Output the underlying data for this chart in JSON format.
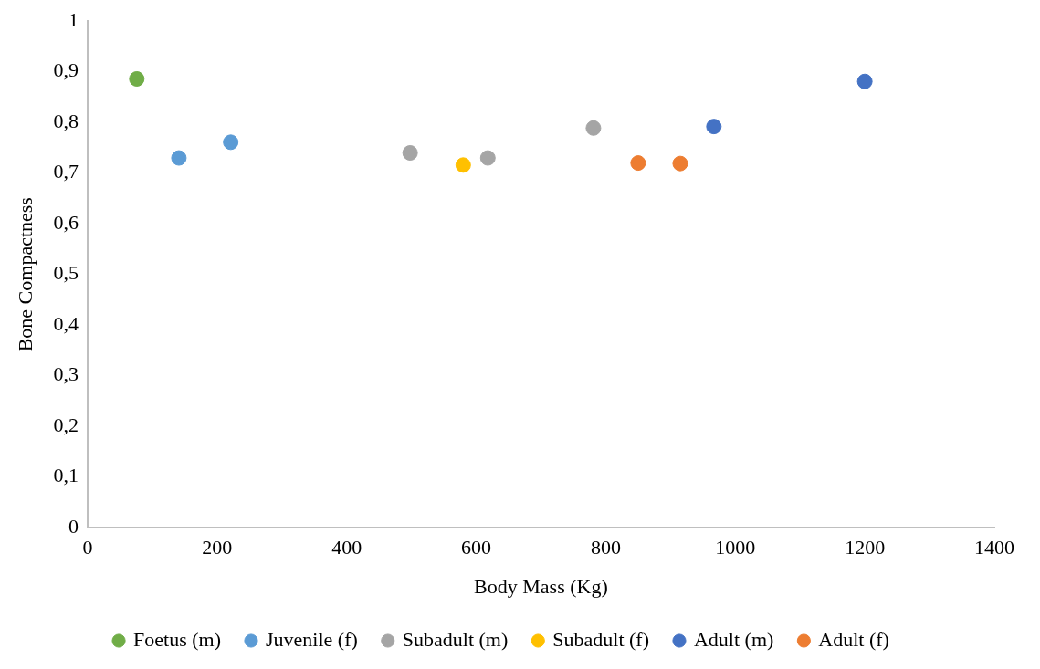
{
  "chart_data": {
    "type": "scatter",
    "xlabel": "Body Mass (Kg)",
    "ylabel": "Bone Compactness",
    "xlim": [
      0,
      1400
    ],
    "xticks": [
      0,
      200,
      400,
      600,
      800,
      1000,
      1200,
      1400
    ],
    "ylim": [
      0,
      1
    ],
    "yticks": [
      0,
      {
        "value": 0.1,
        "label": "0,1"
      },
      {
        "value": 0.2,
        "label": "0,2"
      },
      {
        "value": 0.3,
        "label": "0,3"
      },
      {
        "value": 0.4,
        "label": "0,4"
      },
      {
        "value": 0.5,
        "label": "0,5"
      },
      {
        "value": 0.6,
        "label": "0,6"
      },
      {
        "value": 0.7,
        "label": "0,7"
      },
      {
        "value": 0.8,
        "label": "0,8"
      },
      {
        "value": 0.9,
        "label": "0,9"
      },
      1
    ],
    "grid": false,
    "legend": "bottom",
    "marker": "circle",
    "series": [
      {
        "name": "Foetus (m)",
        "color": "#70ad47",
        "x": [
          76
        ],
        "values": [
          0.886
        ]
      },
      {
        "name": "Juvenile (f)",
        "color": "#5b9bd5",
        "x": [
          141,
          221
        ],
        "values": [
          0.73,
          0.761
        ]
      },
      {
        "name": "Subadult (m)",
        "color": "#a5a5a5",
        "x": [
          498,
          618,
          781
        ],
        "values": [
          0.74,
          0.73,
          0.789
        ]
      },
      {
        "name": "Subadult (f)",
        "color": "#ffc000",
        "x": [
          580
        ],
        "values": [
          0.716
        ]
      },
      {
        "name": "Adult (m)",
        "color": "#4472c4",
        "x": [
          967,
          1200
        ],
        "values": [
          0.792,
          0.881
        ]
      },
      {
        "name": "Adult (f)",
        "color": "#ed7d31",
        "x": [
          850,
          915
        ],
        "values": [
          0.72,
          0.719
        ]
      }
    ]
  }
}
